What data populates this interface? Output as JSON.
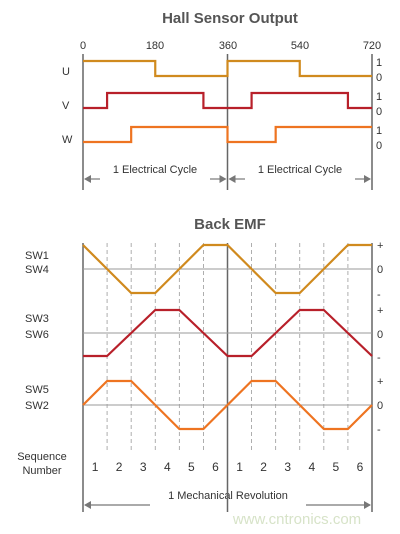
{
  "hall": {
    "title": "Hall Sensor Output",
    "angle_ticks": [
      "0",
      "180",
      "360",
      "540",
      "720"
    ],
    "signals": [
      {
        "name": "U",
        "color": "#d08a1e",
        "levels": [
          1,
          1,
          1,
          0,
          0,
          0,
          1,
          1,
          1,
          0,
          0,
          0
        ]
      },
      {
        "name": "V",
        "color": "#b8202a",
        "levels": [
          0,
          1,
          1,
          1,
          1,
          0,
          0,
          1,
          1,
          1,
          1,
          0
        ]
      },
      {
        "name": "W",
        "color": "#ee7421",
        "levels": [
          0,
          0,
          1,
          1,
          1,
          1,
          0,
          0,
          1,
          1,
          1,
          1
        ]
      }
    ],
    "level_high": "1",
    "level_low": "0",
    "cycle_label": "1 Electrical Cycle"
  },
  "emf": {
    "title": "Back EMF",
    "waves": [
      {
        "names": [
          "SW1",
          "SW4"
        ],
        "color": "#d08a1e",
        "values": [
          1,
          0,
          -1,
          -1,
          0,
          1,
          1,
          0,
          -1,
          -1,
          0,
          1,
          1
        ]
      },
      {
        "names": [
          "SW3",
          "SW6"
        ],
        "color": "#b8202a",
        "values": [
          -1,
          -1,
          0,
          1,
          1,
          0,
          -1,
          -1,
          0,
          1,
          1,
          0,
          -1
        ]
      },
      {
        "names": [
          "SW5",
          "SW2"
        ],
        "color": "#ee7421",
        "values": [
          0,
          1,
          1,
          0,
          -1,
          -1,
          0,
          1,
          1,
          0,
          -1,
          -1,
          0
        ]
      }
    ],
    "axis_marks": [
      "+",
      "0",
      "-"
    ]
  },
  "sequence": {
    "label_line1": "Sequence",
    "label_line2": "Number",
    "numbers": [
      "1",
      "2",
      "3",
      "4",
      "5",
      "6",
      "1",
      "2",
      "3",
      "4",
      "5",
      "6"
    ]
  },
  "mechanical_label": "1 Mechanical Revolution",
  "watermark": "www.cntronics.com",
  "colors": {
    "grid": "#9a9a9a",
    "axis": "#666666",
    "arrow": "#777777"
  }
}
